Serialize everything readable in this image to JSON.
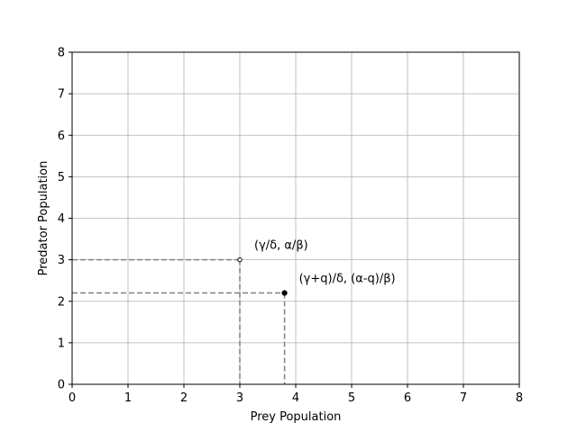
{
  "chart_data": {
    "type": "scatter",
    "title": "",
    "xlabel": "Prey Population",
    "ylabel": "Predator Population",
    "xlim": [
      0,
      8
    ],
    "ylim": [
      0,
      8
    ],
    "xticks": [
      0,
      1,
      2,
      3,
      4,
      5,
      6,
      7,
      8
    ],
    "yticks": [
      0,
      1,
      2,
      3,
      4,
      5,
      6,
      7,
      8
    ],
    "grid": true,
    "points": [
      {
        "x": 3.0,
        "y": 3.0,
        "label": "(γ/δ, α/β)",
        "marker": "open-circle"
      },
      {
        "x": 3.8,
        "y": 2.2,
        "label": "(γ+q)/δ, (α-q)/β)",
        "marker": "filled-circle"
      }
    ],
    "guide_lines": "dashed lines from each point to both axes",
    "colors": {
      "grid": "#b0b0b0",
      "guide": "#808080",
      "point": "#000000"
    }
  }
}
